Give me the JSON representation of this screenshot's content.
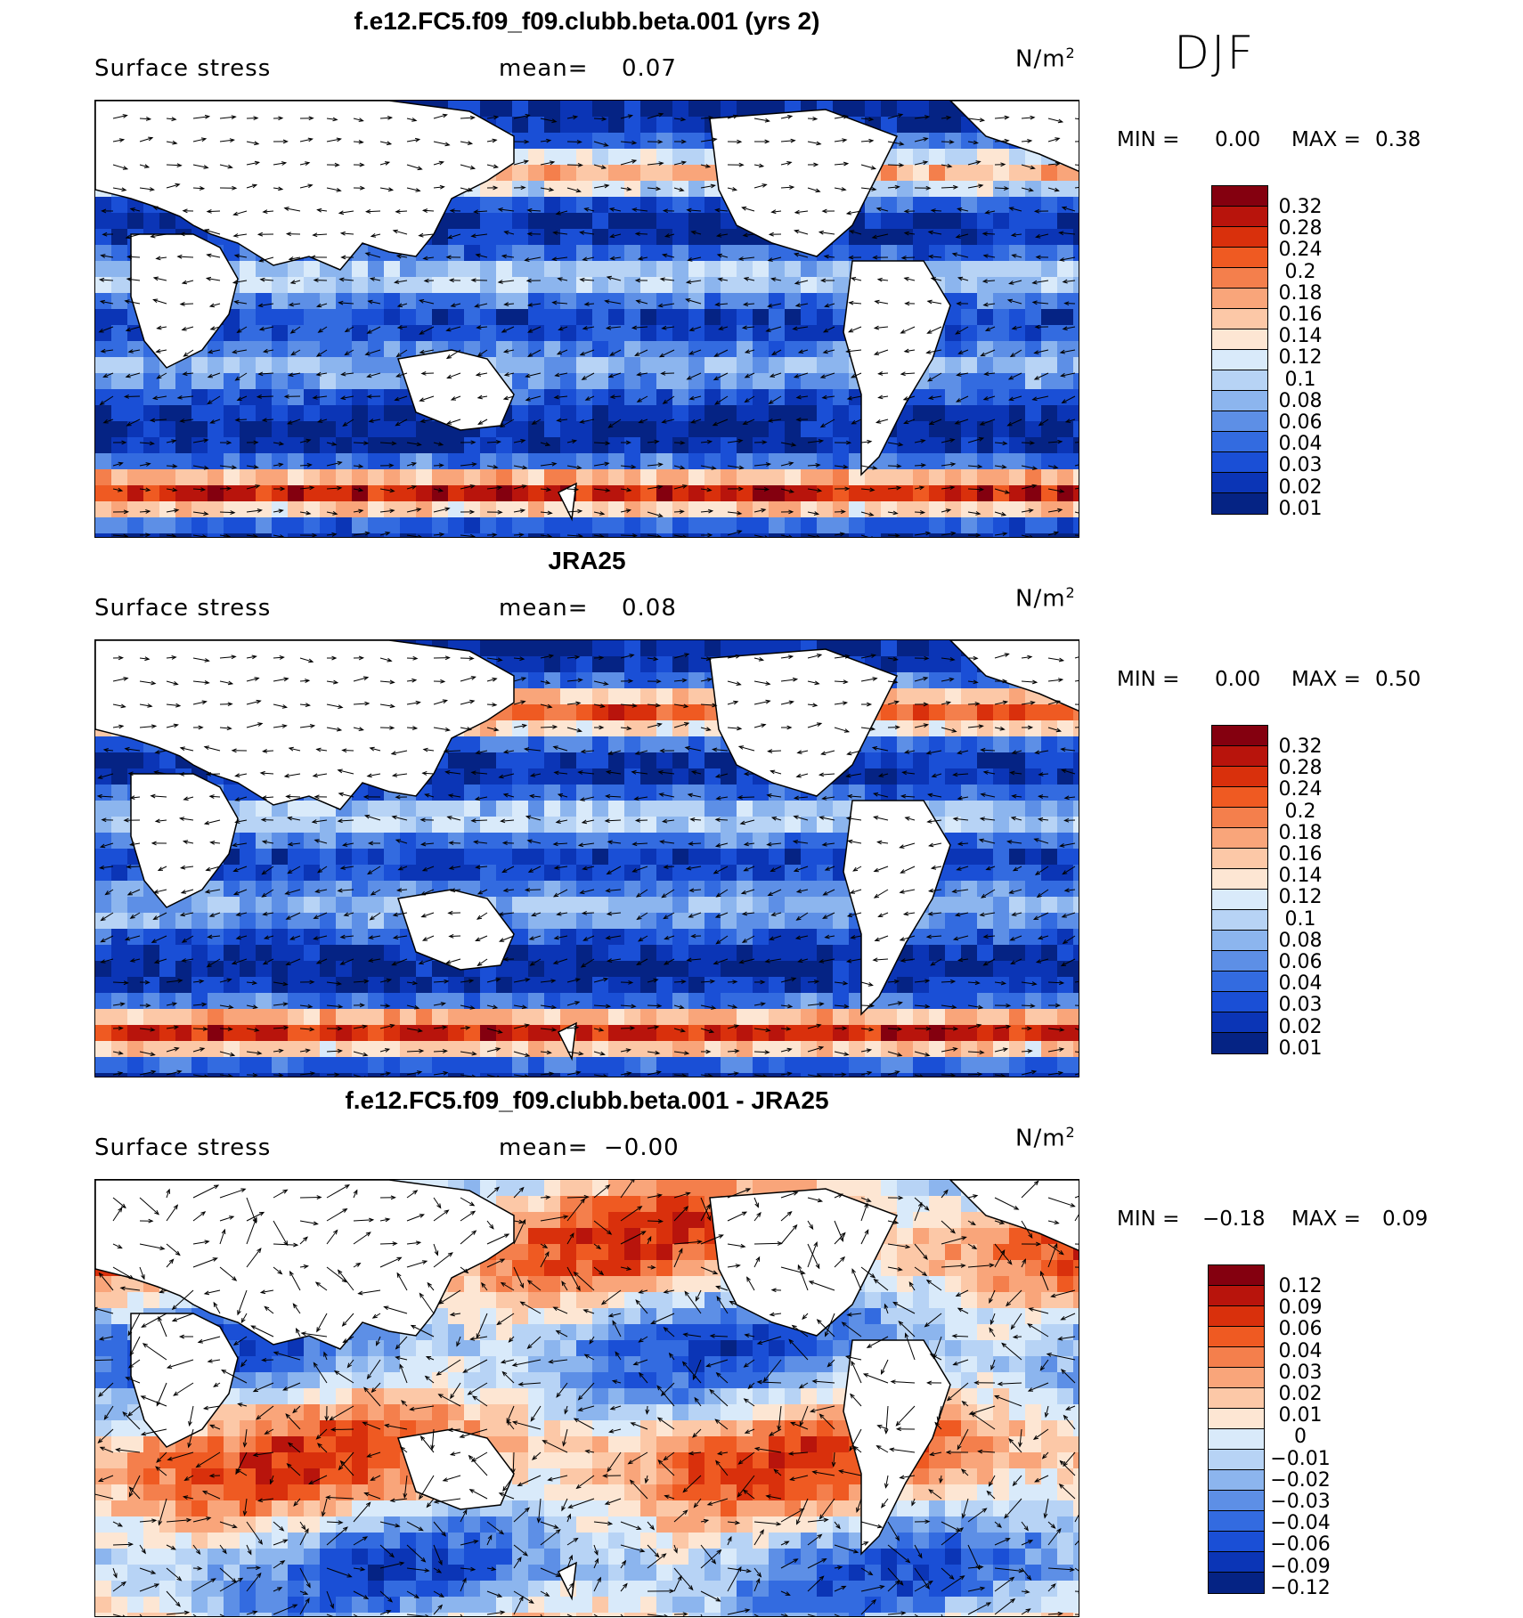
{
  "season": "DJF",
  "colors": {
    "land": "#ffffff",
    "coast": "#000000",
    "cbar_pos": [
      "#84000f",
      "#b8140c",
      "#d9300c",
      "#ef5a22",
      "#f47f4c",
      "#f9a57a",
      "#fcc8a7",
      "#fde6d3"
    ],
    "cbar_neg": [
      "#d9eafa",
      "#b7d3f5",
      "#8cb5ee",
      "#5d8fe6",
      "#336be0",
      "#1a4fd6",
      "#0b35b6",
      "#052384"
    ]
  },
  "panels": [
    {
      "title": "f.e12.FC5.f09_f09.clubb.beta.001 (yrs 2)",
      "variable": "Surface stress",
      "mean_label": "mean=",
      "mean_value": "0.07",
      "units": "N/m",
      "units_sup": "2",
      "min_label": "MIN =",
      "min_value": "0.00",
      "max_label": "MAX =",
      "max_value": "0.38",
      "colorbar_labels": [
        "0.32",
        "0.28",
        "0.24",
        "0.2",
        "0.18",
        "0.16",
        "0.14",
        "0.12",
        "0.1",
        "0.08",
        "0.06",
        "0.04",
        "0.03",
        "0.02",
        "0.01"
      ]
    },
    {
      "title": "JRA25",
      "variable": "Surface stress",
      "mean_label": "mean=",
      "mean_value": "0.08",
      "units": "N/m",
      "units_sup": "2",
      "min_label": "MIN =",
      "min_value": "0.00",
      "max_label": "MAX =",
      "max_value": "0.50",
      "colorbar_labels": [
        "0.32",
        "0.28",
        "0.24",
        "0.2",
        "0.18",
        "0.16",
        "0.14",
        "0.12",
        "0.1",
        "0.08",
        "0.06",
        "0.04",
        "0.03",
        "0.02",
        "0.01"
      ]
    },
    {
      "title": "f.e12.FC5.f09_f09.clubb.beta.001 - JRA25",
      "variable": "Surface stress",
      "mean_label": "mean=",
      "mean_value": "−0.00",
      "units": "N/m",
      "units_sup": "2",
      "min_label": "MIN =",
      "min_value": "−0.18",
      "max_label": "MAX =",
      "max_value": "0.09",
      "colorbar_labels": [
        "0.12",
        "0.09",
        "0.06",
        "0.04",
        "0.03",
        "0.02",
        "0.01",
        "0",
        "−0.01",
        "−0.02",
        "−0.03",
        "−0.04",
        "−0.06",
        "−0.09",
        "−0.12"
      ]
    }
  ]
}
